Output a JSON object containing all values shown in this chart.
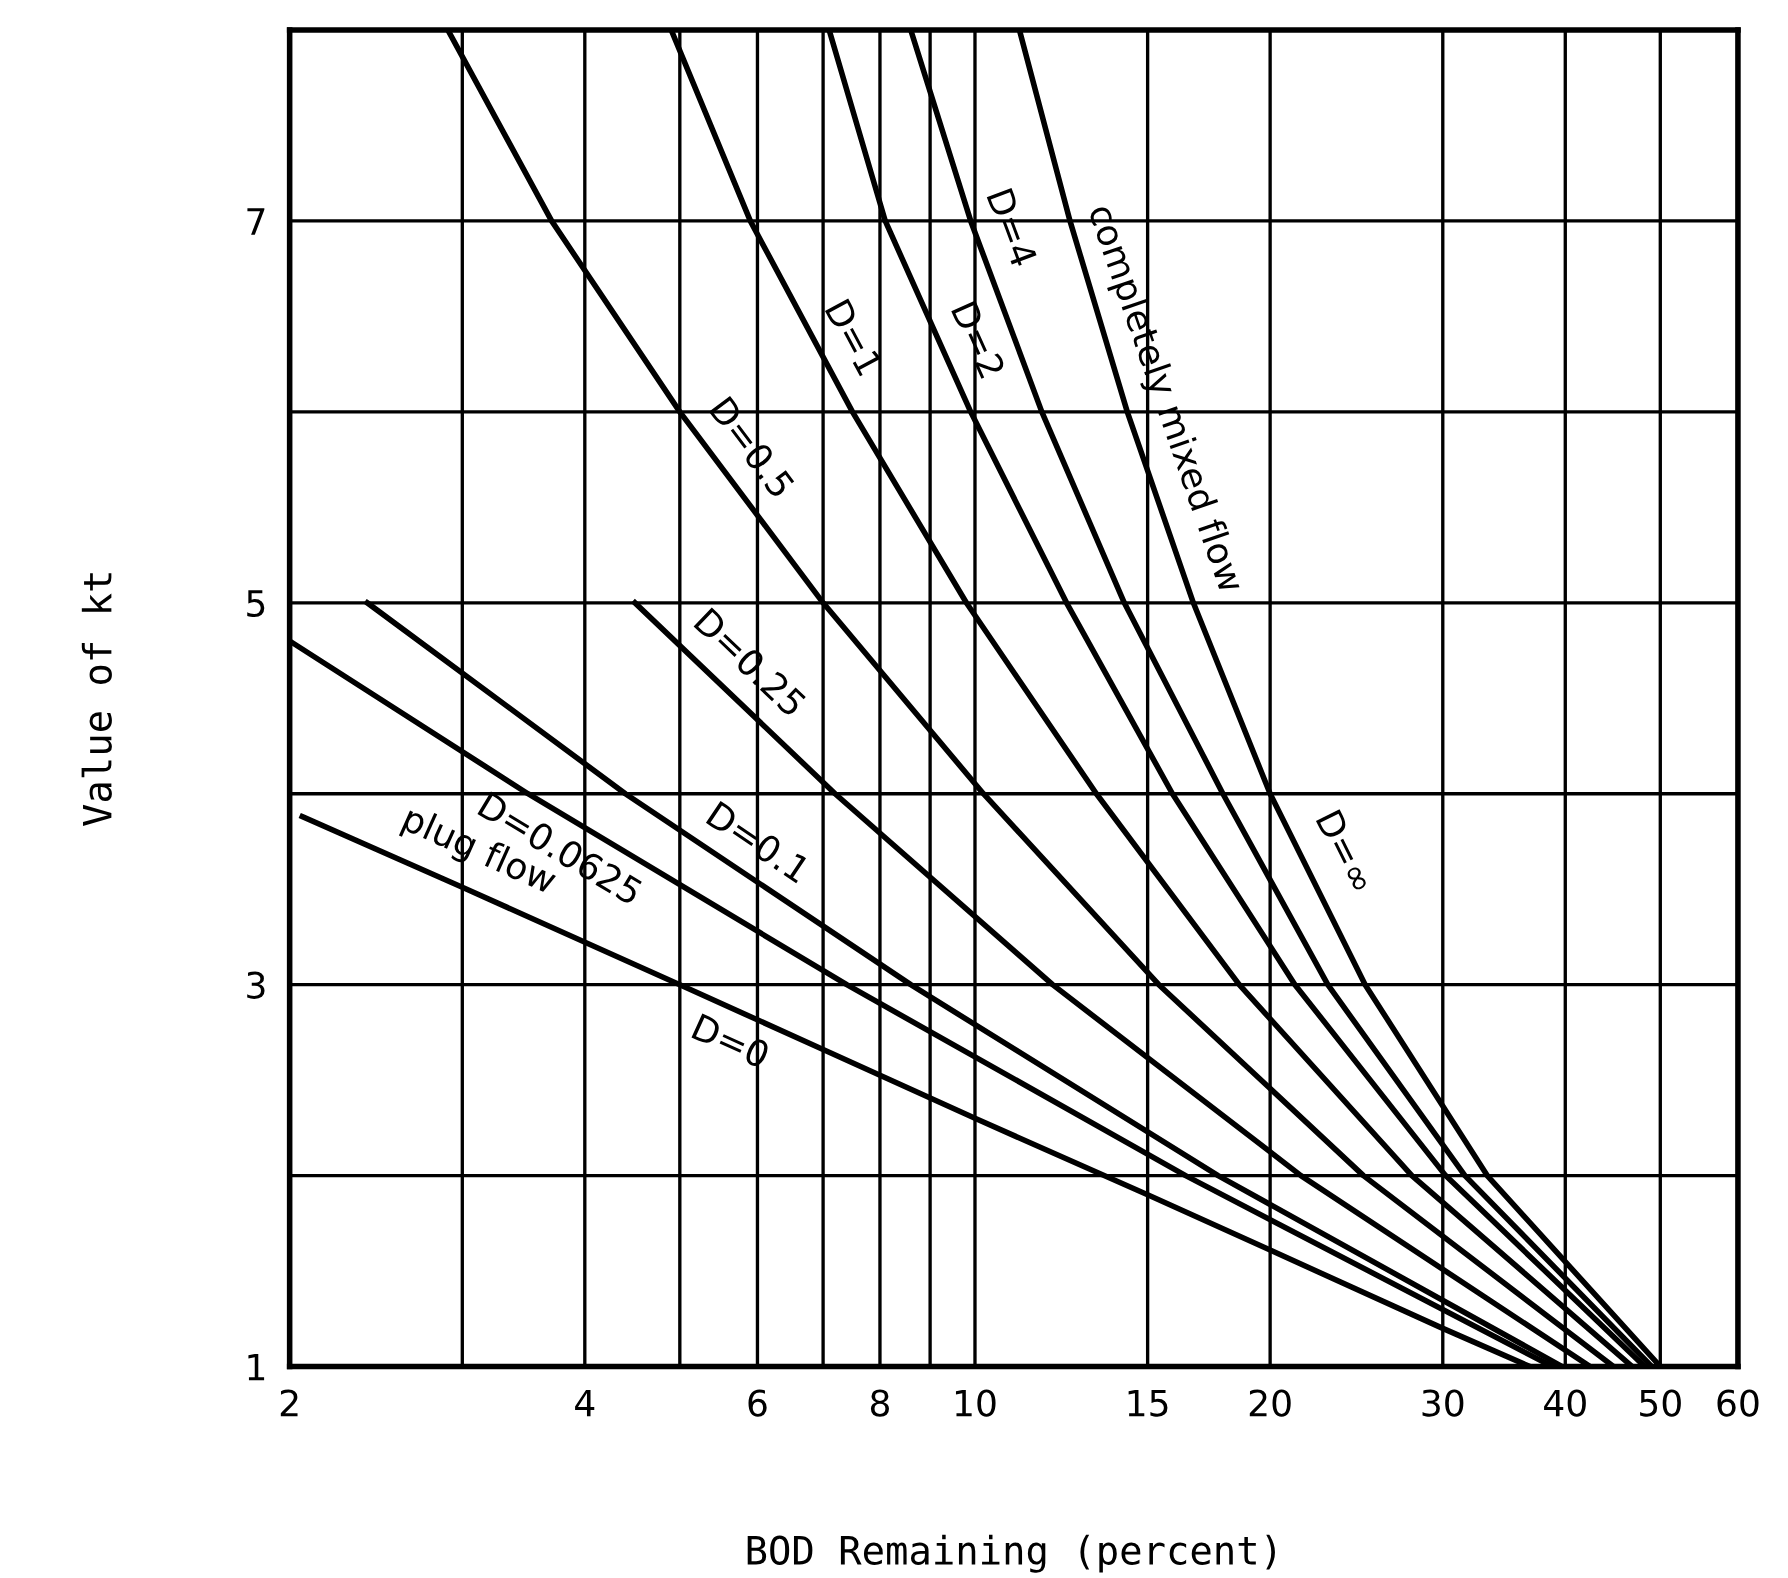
{
  "chart_data": {
    "type": "line",
    "xlabel": "BOD Remaining (percent)",
    "ylabel": "Value of kt",
    "log": "x",
    "grid": true,
    "legend": false,
    "marker": "none",
    "line_style": "solid",
    "xlim": [
      2,
      60
    ],
    "ylim": [
      1,
      8
    ],
    "xticks": [
      2,
      {
        "value": 3,
        "label": null
      },
      4,
      {
        "value": 5,
        "label": null
      },
      6,
      {
        "value": 7,
        "label": null
      },
      8,
      {
        "value": 9,
        "label": null
      },
      10,
      15,
      20,
      30,
      40,
      50,
      60
    ],
    "yticks": [
      1,
      {
        "value": 2,
        "label": null
      },
      3,
      {
        "value": 4,
        "label": null
      },
      5,
      {
        "value": 6,
        "label": null
      },
      7
    ],
    "series": [
      {
        "name": "D=0",
        "color": "#000000",
        "x": [
          2.06,
          3,
          5,
          7,
          10,
          15,
          20,
          30,
          36.8
        ],
        "values": [
          3.88,
          3.51,
          3.0,
          2.66,
          2.3,
          1.9,
          1.61,
          1.2,
          1.0
        ]
      },
      {
        "name": "D=0.0625",
        "color": "#000000",
        "x": [
          2.0,
          3.5,
          7.4,
          16.4,
          38.8
        ],
        "values": [
          4.8,
          4,
          3,
          2,
          1
        ]
      },
      {
        "name": "D=0.1",
        "color": "#000000",
        "x": [
          2.4,
          4.4,
          8.6,
          17.7,
          39.7
        ],
        "values": [
          5,
          4,
          3,
          2,
          1
        ]
      },
      {
        "name": "D=0.25",
        "color": "#000000",
        "x": [
          4.5,
          7.2,
          12,
          21.5,
          42.4
        ],
        "values": [
          5,
          4,
          3,
          2,
          1
        ]
      },
      {
        "name": "D=0.5",
        "color": "#000000",
        "x": [
          2.9,
          3.7,
          5,
          7,
          10.2,
          15.4,
          24.9,
          44.8
        ],
        "values": [
          8,
          7,
          6,
          5,
          4,
          3,
          2,
          1
        ]
      },
      {
        "name": "D=1",
        "color": "#000000",
        "x": [
          4.9,
          5.9,
          7.5,
          9.8,
          13.3,
          18.6,
          27.9,
          46.8
        ],
        "values": [
          8,
          7,
          6,
          5,
          4,
          3,
          2,
          1
        ]
      },
      {
        "name": "D=2",
        "color": "#000000",
        "x": [
          7.1,
          8.1,
          9.9,
          12.4,
          15.9,
          21.2,
          30.2,
          48.2
        ],
        "values": [
          8,
          7,
          6,
          5,
          4,
          3,
          2,
          1
        ]
      },
      {
        "name": "D=4",
        "color": "#000000",
        "x": [
          8.6,
          9.9,
          11.7,
          14.2,
          17.9,
          22.9,
          31.6,
          49
        ],
        "values": [
          8,
          7,
          6,
          5,
          4,
          3,
          2,
          1
        ]
      },
      {
        "name": "D=∞",
        "color": "#000000",
        "x": [
          11.1,
          12.5,
          14.3,
          16.7,
          20,
          25,
          33.3,
          50
        ],
        "values": [
          8,
          7,
          6,
          5,
          4,
          3,
          2,
          1
        ]
      }
    ],
    "annotations": [
      {
        "text": "plug flow",
        "x": 3,
        "y": 3.51
      },
      {
        "text": "completely mixed flow",
        "x": 14.3,
        "y": 6
      }
    ]
  }
}
